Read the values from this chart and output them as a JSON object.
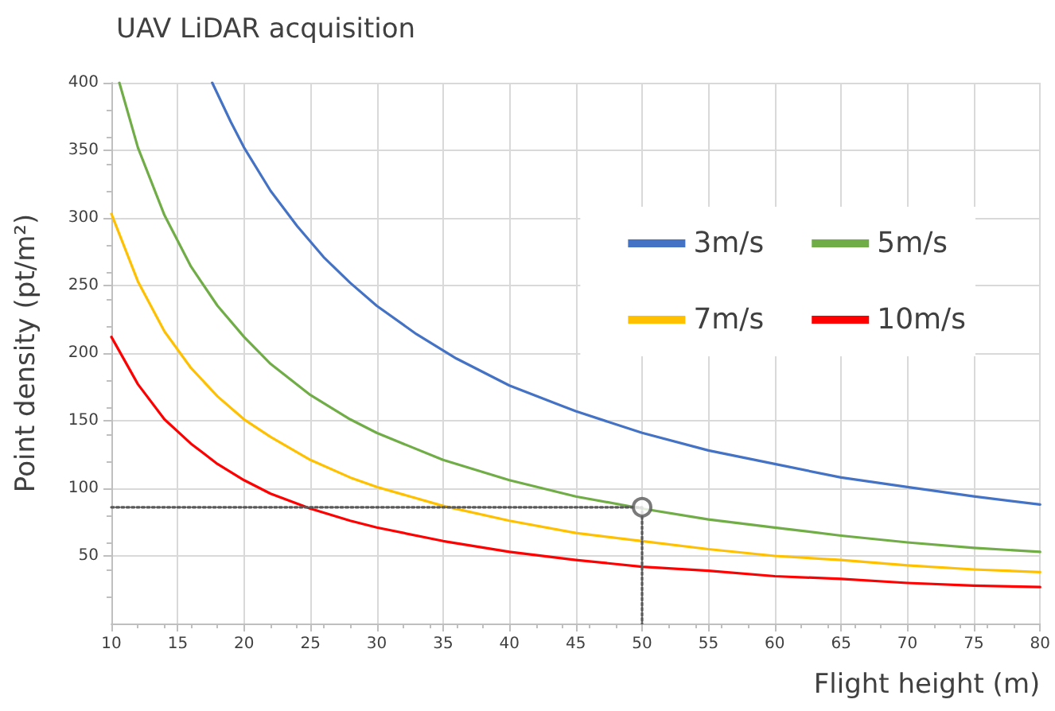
{
  "chart_data": {
    "type": "line",
    "title": "UAV LiDAR acquisition",
    "xlabel": "Flight height (m)",
    "ylabel": "Point density (pt/m²)",
    "xlim": [
      10,
      80
    ],
    "xticks": [
      10,
      15,
      20,
      25,
      30,
      35,
      40,
      45,
      50,
      55,
      60,
      65,
      70,
      75,
      80
    ],
    "ylim": [
      0,
      400
    ],
    "yticks": [
      50,
      100,
      150,
      200,
      250,
      300,
      350,
      400
    ],
    "grid": true,
    "legend": "top right",
    "marker": "none",
    "line_style": "solid",
    "series": [
      {
        "name": "3m/s",
        "color": "#4472c4",
        "x": [
          17.6,
          19,
          20,
          22,
          24,
          26,
          28,
          30,
          33,
          36,
          40,
          45,
          50,
          55,
          60,
          65,
          70,
          75,
          80
        ],
        "values": [
          400,
          371,
          352,
          320,
          294,
          271,
          252,
          235,
          214,
          196,
          176,
          157,
          141,
          128,
          118,
          108,
          101,
          94,
          88
        ]
      },
      {
        "name": "5m/s",
        "color": "#70ad47",
        "x": [
          10.6,
          12,
          14,
          16,
          18,
          20,
          22,
          25,
          28,
          30,
          35,
          40,
          45,
          50,
          55,
          60,
          65,
          70,
          75,
          80
        ],
        "values": [
          400,
          352,
          302,
          264,
          235,
          212,
          192,
          169,
          151,
          141,
          121,
          106,
          94,
          85,
          77,
          71,
          65,
          60,
          56,
          53
        ]
      },
      {
        "name": "7m/s",
        "color": "#ffc000",
        "x": [
          10,
          12,
          14,
          16,
          18,
          20,
          22,
          25,
          28,
          30,
          35,
          40,
          45,
          50,
          55,
          60,
          65,
          70,
          75,
          80
        ],
        "values": [
          303,
          253,
          216,
          189,
          168,
          151,
          138,
          121,
          108,
          101,
          87,
          76,
          67,
          61,
          55,
          50,
          47,
          43,
          40,
          38
        ]
      },
      {
        "name": "10m/s",
        "color": "#ff0000",
        "x": [
          10,
          12,
          14,
          16,
          18,
          20,
          22,
          25,
          28,
          30,
          35,
          40,
          45,
          50,
          55,
          60,
          65,
          70,
          75,
          80
        ],
        "values": [
          212,
          177,
          151,
          133,
          118,
          106,
          96,
          85,
          76,
          71,
          61,
          53,
          47,
          42,
          39,
          35,
          33,
          30,
          28,
          27
        ]
      },
      {
        "type": "line",
        "color": "#595959",
        "line_style": "dotted",
        "marker": "none",
        "x": [
          10,
          50,
          50
        ],
        "values": [
          86,
          86,
          0
        ]
      },
      {
        "type": "scatter",
        "color": "#595959",
        "marker": "circle",
        "x": [
          50
        ],
        "values": [
          86
        ]
      }
    ]
  }
}
